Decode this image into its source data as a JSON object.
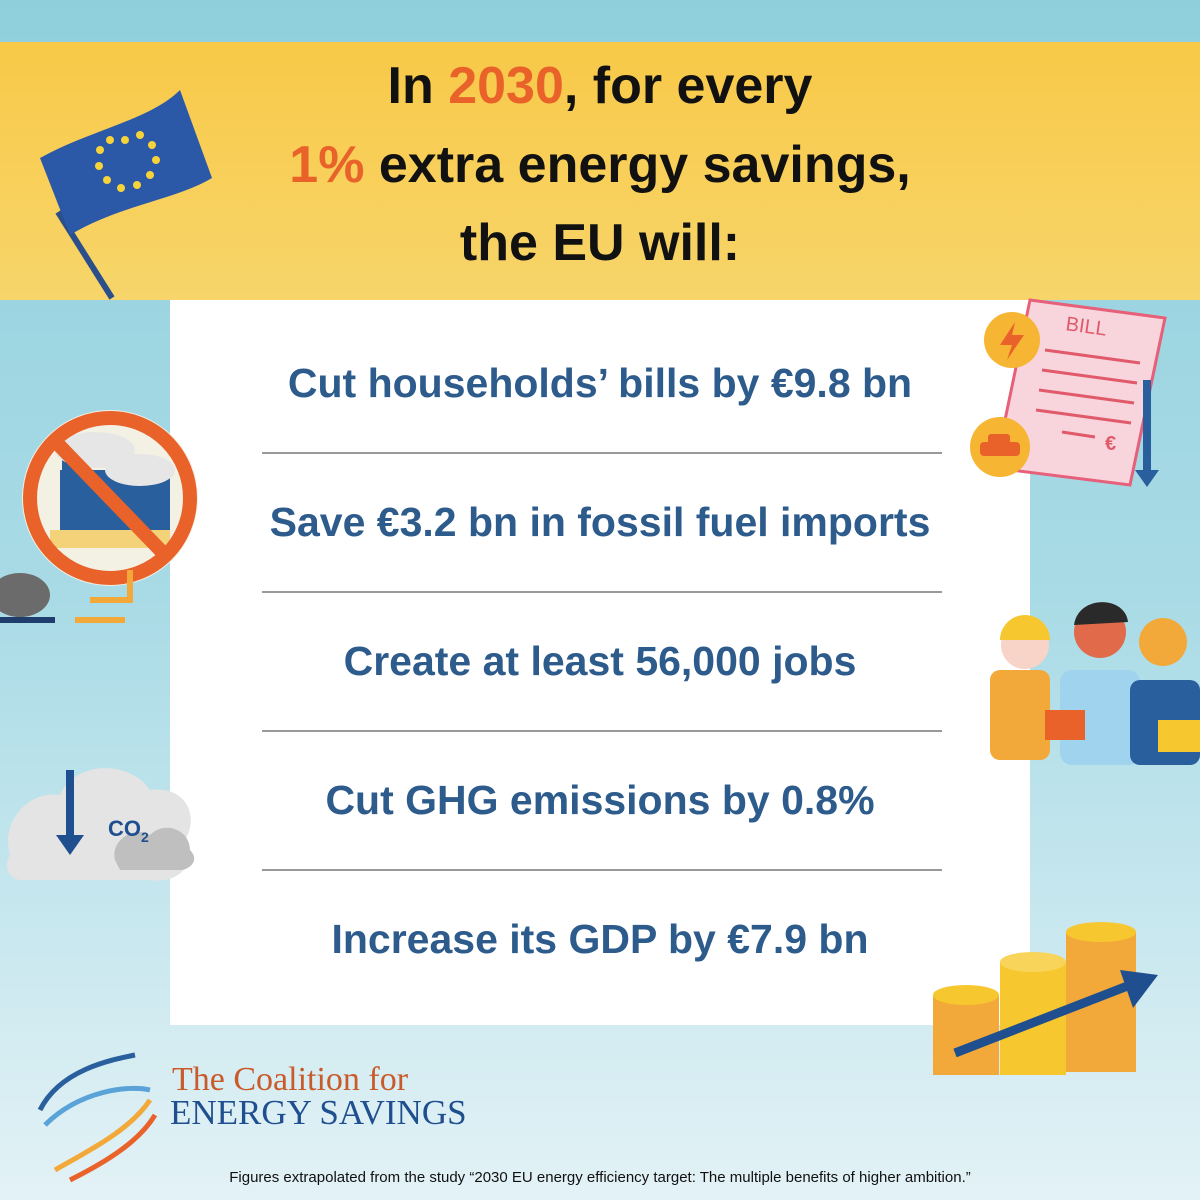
{
  "headline": {
    "lines": [
      [
        {
          "text": "In ",
          "highlight": false
        },
        {
          "text": "2030",
          "highlight": true
        },
        {
          "text": ", for every",
          "highlight": false
        }
      ],
      [
        {
          "text": "1%",
          "highlight": true
        },
        {
          "text": " extra energy savings,",
          "highlight": false
        }
      ],
      [
        {
          "text": "the EU will:",
          "highlight": false
        }
      ]
    ]
  },
  "benefits": [
    "Cut households’ bills by €9.8 bn",
    "Save €3.2 bn in fossil fuel imports",
    "Create at least 56,000 jobs",
    "Cut GHG emissions by 0.8%",
    "Increase its GDP by €7.9 bn"
  ],
  "icons": {
    "bill_label": "BILL",
    "bill_currency": "€",
    "co2": "CO",
    "co2_sub": "2"
  },
  "logo": {
    "line1": "The Coalition for",
    "line2": "ENERGY SAVINGS"
  },
  "footnote": "Figures extrapolated from the study “2030 EU energy efficiency target: The multiple benefits of higher ambition.”"
}
